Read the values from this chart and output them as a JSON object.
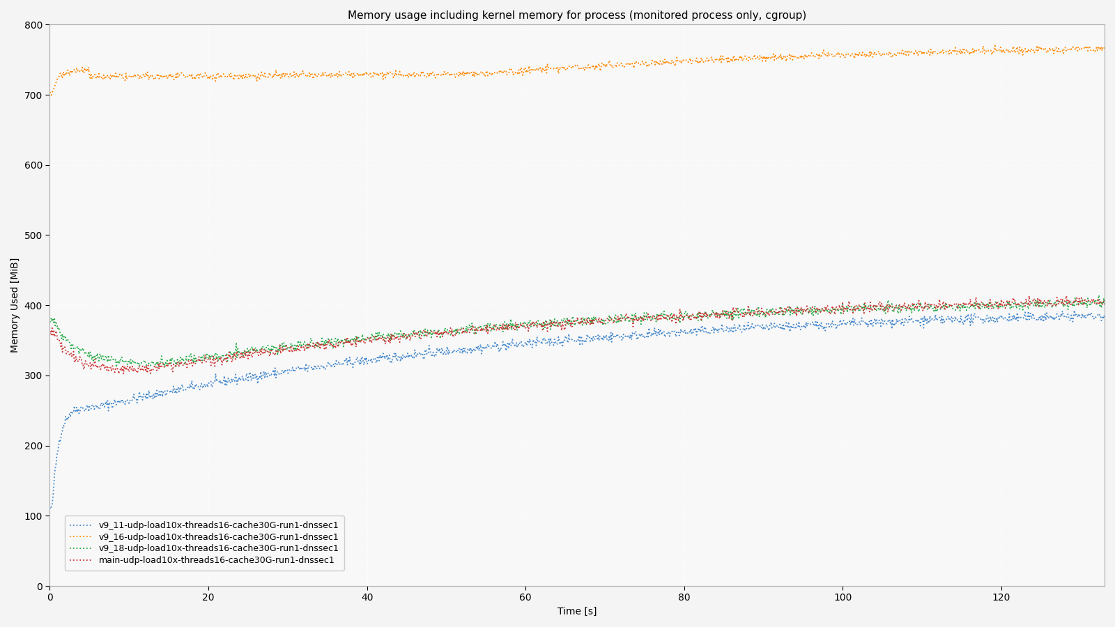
{
  "title": "Memory usage including kernel memory for process (monitored process only, cgroup)",
  "xlabel": "Time [s]",
  "ylabel": "Memory Used [MiB]",
  "xlim": [
    0,
    133
  ],
  "ylim": [
    0,
    800
  ],
  "yticks": [
    0,
    100,
    200,
    300,
    400,
    500,
    600,
    700,
    800
  ],
  "xticks": [
    0,
    20,
    40,
    60,
    80,
    100,
    120
  ],
  "fig_background": "#f4f4f4",
  "ax_background": "#f8f8f8",
  "grid_color": "#ffffff",
  "grid_style": "dotted",
  "series": [
    {
      "label": "v9_11-udp-load10x-threads16-cache30G-run1-dnssec1",
      "color": "#4488cc",
      "style": "dotted",
      "linewidth": 1.3
    },
    {
      "label": "v9_16-udp-load10x-threads16-cache30G-run1-dnssec1",
      "color": "#ff8800",
      "style": "dotted",
      "linewidth": 1.3
    },
    {
      "label": "v9_18-udp-load10x-threads16-cache30G-run1-dnssec1",
      "color": "#22aa44",
      "style": "dotted",
      "linewidth": 1.3
    },
    {
      "label": "main-udp-load10x-threads16-cache30G-run1-dnssec1",
      "color": "#cc3333",
      "style": "dotted",
      "linewidth": 1.3
    }
  ],
  "legend_fontsize": 9,
  "title_fontsize": 11,
  "axis_fontsize": 10,
  "tick_fontsize": 10
}
